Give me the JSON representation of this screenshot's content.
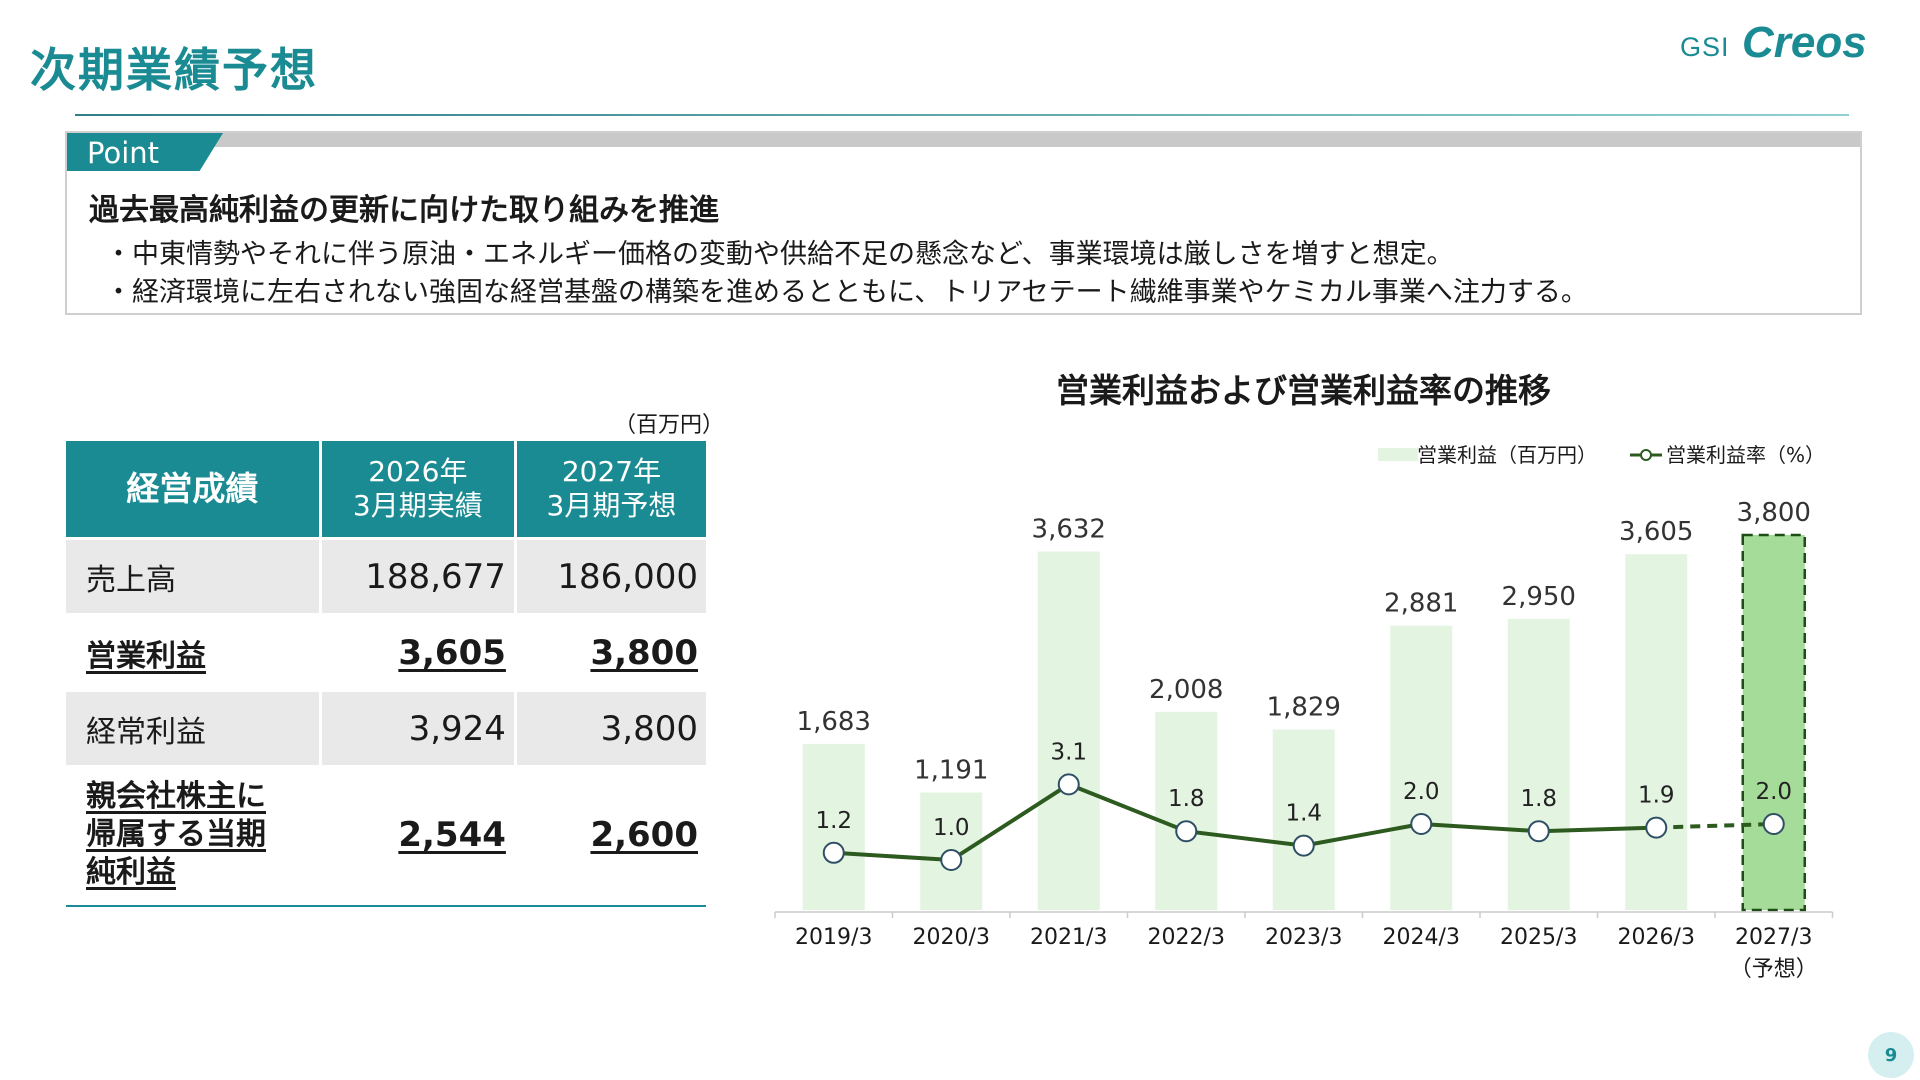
{
  "header": {
    "title": "次期業績予想",
    "logo_prefix": "GSI",
    "logo_name": "Creos"
  },
  "point": {
    "label": "Point",
    "heading": "過去最高純利益の更新に向けた取り組みを推進",
    "bullets": [
      "・中東情勢やそれに伴う原油・エネルギー価格の変動や供給不足の懸念など、事業環境は厳しさを増すと想定。",
      "・経済環境に左右されない強固な経営基盤の構築を進めるとともに、トリアセテート繊維事業やケミカル事業へ注力する。"
    ]
  },
  "table": {
    "unit": "（百万円）",
    "header": {
      "col0": "経営成績",
      "col1_line1": "2026年",
      "col1_line2": "3月期実績",
      "col2_line1": "2027年",
      "col2_line2": "3月期予想"
    },
    "rows": [
      {
        "label": "売上高",
        "v2026": "188,677",
        "v2027": "186,000"
      },
      {
        "label": "営業利益",
        "v2026": "3,605",
        "v2027": "3,800"
      },
      {
        "label": "経常利益",
        "v2026": "3,924",
        "v2027": "3,800"
      },
      {
        "label_line1": "親会社株主に",
        "label_line2": "帰属する当期",
        "label_line3": "純利益",
        "v2026": "2,544",
        "v2027": "2,600"
      }
    ]
  },
  "chart": {
    "title": "営業利益および営業利益率の推移"
  },
  "chart_data": {
    "type": "bar",
    "categories": [
      "2019/3",
      "2020/3",
      "2021/3",
      "2022/3",
      "2023/3",
      "2024/3",
      "2025/3",
      "2026/3",
      "2027/3"
    ],
    "forecast_note": "（予想）",
    "series": [
      {
        "name": "営業利益(百万円)",
        "type": "bar",
        "values": [
          1683,
          1191,
          3632,
          2008,
          1829,
          2881,
          2950,
          3605,
          3800
        ],
        "labels": [
          "1,683",
          "1,191",
          "3,632",
          "2,008",
          "1,829",
          "2,881",
          "2,950",
          "3,605",
          "3,800"
        ],
        "color": "#e3f4e1",
        "forecast_color": "#a6dc9a"
      },
      {
        "name": "営業利益率(%)",
        "type": "line",
        "values": [
          1.2,
          1.0,
          3.1,
          1.8,
          1.4,
          2.0,
          1.8,
          1.9,
          2.0
        ],
        "labels": [
          "1.2",
          "1.0",
          "3.1",
          "1.8",
          "1.4",
          "2.0",
          "1.8",
          "1.9",
          "2.0"
        ],
        "color": "#2d5a1e"
      }
    ],
    "legend_position": "top-right",
    "forecast_index": 8,
    "grid": false
  },
  "page": {
    "number": "9"
  },
  "colors": {
    "brand": "#1a8b93"
  }
}
